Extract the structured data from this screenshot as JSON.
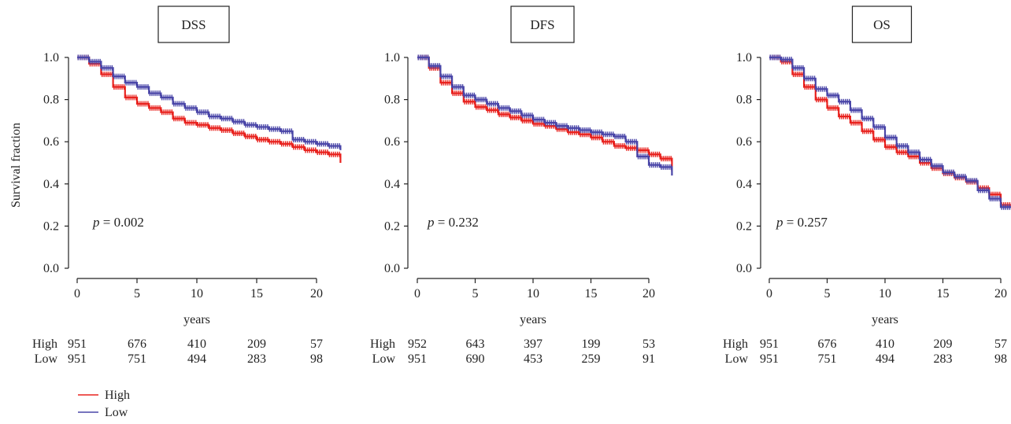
{
  "ylabel": "Survival fraction",
  "xlabel": "years",
  "colors": {
    "High": "#e8231f",
    "Low": "#4a46a8"
  },
  "legend": [
    {
      "name": "High",
      "color": "#e8231f"
    },
    {
      "name": "Low",
      "color": "#4a46a8"
    }
  ],
  "risk_row_labels": [
    "High",
    "Low"
  ],
  "chart_data": [
    {
      "type": "line",
      "title": "DSS",
      "p_label": "p",
      "p_value": "= 0.002",
      "xlabel": "years",
      "ylabel": "Survival fraction",
      "xlim": [
        0,
        22
      ],
      "ylim": [
        0,
        1
      ],
      "xticks": [
        "0",
        "5",
        "10",
        "15",
        "20"
      ],
      "yticks": [
        "0.0",
        "0.2",
        "0.4",
        "0.6",
        "0.8",
        "1.0"
      ],
      "series": [
        {
          "name": "High",
          "x": [
            0,
            1,
            2,
            3,
            4,
            5,
            6,
            7,
            8,
            9,
            10,
            11,
            12,
            13,
            14,
            15,
            16,
            17,
            18,
            19,
            20,
            21,
            22
          ],
          "y": [
            1.0,
            0.97,
            0.92,
            0.86,
            0.81,
            0.78,
            0.76,
            0.74,
            0.71,
            0.69,
            0.68,
            0.665,
            0.655,
            0.64,
            0.625,
            0.61,
            0.6,
            0.59,
            0.575,
            0.56,
            0.55,
            0.54,
            0.5
          ]
        },
        {
          "name": "Low",
          "x": [
            0,
            1,
            2,
            3,
            4,
            5,
            6,
            7,
            8,
            9,
            10,
            11,
            12,
            13,
            14,
            15,
            16,
            17,
            18,
            19,
            20,
            21,
            22
          ],
          "y": [
            1.0,
            0.98,
            0.95,
            0.91,
            0.88,
            0.86,
            0.83,
            0.81,
            0.78,
            0.76,
            0.74,
            0.72,
            0.71,
            0.695,
            0.68,
            0.67,
            0.66,
            0.65,
            0.61,
            0.6,
            0.59,
            0.58,
            0.56
          ]
        }
      ],
      "risk_x": [
        0,
        5,
        10,
        15,
        20
      ],
      "risk_table": {
        "High": [
          "951",
          "676",
          "410",
          "209",
          "57"
        ],
        "Low": [
          "951",
          "751",
          "494",
          "283",
          "98"
        ]
      }
    },
    {
      "type": "line",
      "title": "DFS",
      "p_label": "p",
      "p_value": "= 0.232",
      "xlabel": "years",
      "ylabel": "",
      "xlim": [
        0,
        22
      ],
      "ylim": [
        0,
        1
      ],
      "xticks": [
        "0",
        "5",
        "10",
        "15",
        "20"
      ],
      "yticks": [
        "0.0",
        "0.2",
        "0.4",
        "0.6",
        "0.8",
        "1.0"
      ],
      "series": [
        {
          "name": "High",
          "x": [
            0,
            1,
            2,
            3,
            4,
            5,
            6,
            7,
            8,
            9,
            10,
            11,
            12,
            13,
            14,
            15,
            16,
            17,
            18,
            19,
            20,
            21,
            22
          ],
          "y": [
            1.0,
            0.95,
            0.88,
            0.83,
            0.79,
            0.765,
            0.75,
            0.73,
            0.715,
            0.7,
            0.685,
            0.675,
            0.66,
            0.645,
            0.635,
            0.62,
            0.6,
            0.58,
            0.57,
            0.56,
            0.54,
            0.52,
            0.46
          ]
        },
        {
          "name": "Low",
          "x": [
            0,
            1,
            2,
            3,
            4,
            5,
            6,
            7,
            8,
            9,
            10,
            11,
            12,
            13,
            14,
            15,
            16,
            17,
            18,
            19,
            20,
            21,
            22
          ],
          "y": [
            1.0,
            0.96,
            0.91,
            0.86,
            0.82,
            0.8,
            0.78,
            0.76,
            0.745,
            0.725,
            0.705,
            0.69,
            0.675,
            0.665,
            0.655,
            0.645,
            0.635,
            0.625,
            0.6,
            0.53,
            0.49,
            0.48,
            0.44
          ]
        }
      ],
      "risk_x": [
        0,
        5,
        10,
        15,
        20
      ],
      "risk_table": {
        "High": [
          "952",
          "643",
          "397",
          "199",
          "53"
        ],
        "Low": [
          "951",
          "690",
          "453",
          "259",
          "91"
        ]
      }
    },
    {
      "type": "line",
      "title": "OS",
      "p_label": "p",
      "p_value": "= 0.257",
      "xlabel": "years",
      "ylabel": "",
      "xlim": [
        0,
        22
      ],
      "ylim": [
        0,
        1
      ],
      "xticks": [
        "0",
        "5",
        "10",
        "15",
        "20"
      ],
      "yticks": [
        "0.0",
        "0.2",
        "0.4",
        "0.6",
        "0.8",
        "1.0"
      ],
      "series": [
        {
          "name": "High",
          "x": [
            0,
            1,
            2,
            3,
            4,
            5,
            6,
            7,
            8,
            9,
            10,
            11,
            12,
            13,
            14,
            15,
            16,
            17,
            18,
            19,
            20,
            21
          ],
          "y": [
            1.0,
            0.98,
            0.92,
            0.86,
            0.8,
            0.76,
            0.72,
            0.69,
            0.65,
            0.61,
            0.575,
            0.55,
            0.53,
            0.5,
            0.475,
            0.45,
            0.43,
            0.41,
            0.38,
            0.35,
            0.3,
            0.28
          ]
        },
        {
          "name": "Low",
          "x": [
            0,
            1,
            2,
            3,
            4,
            5,
            6,
            7,
            8,
            9,
            10,
            11,
            12,
            13,
            14,
            15,
            16,
            17,
            18,
            19,
            20,
            21
          ],
          "y": [
            1.0,
            0.99,
            0.95,
            0.9,
            0.85,
            0.82,
            0.79,
            0.75,
            0.71,
            0.67,
            0.62,
            0.58,
            0.55,
            0.515,
            0.485,
            0.455,
            0.435,
            0.415,
            0.37,
            0.33,
            0.29,
            0.27
          ]
        }
      ],
      "risk_x": [
        0,
        5,
        10,
        15,
        20
      ],
      "risk_table": {
        "High": [
          "951",
          "676",
          "410",
          "209",
          "57"
        ],
        "Low": [
          "951",
          "751",
          "494",
          "283",
          "98"
        ]
      }
    }
  ]
}
